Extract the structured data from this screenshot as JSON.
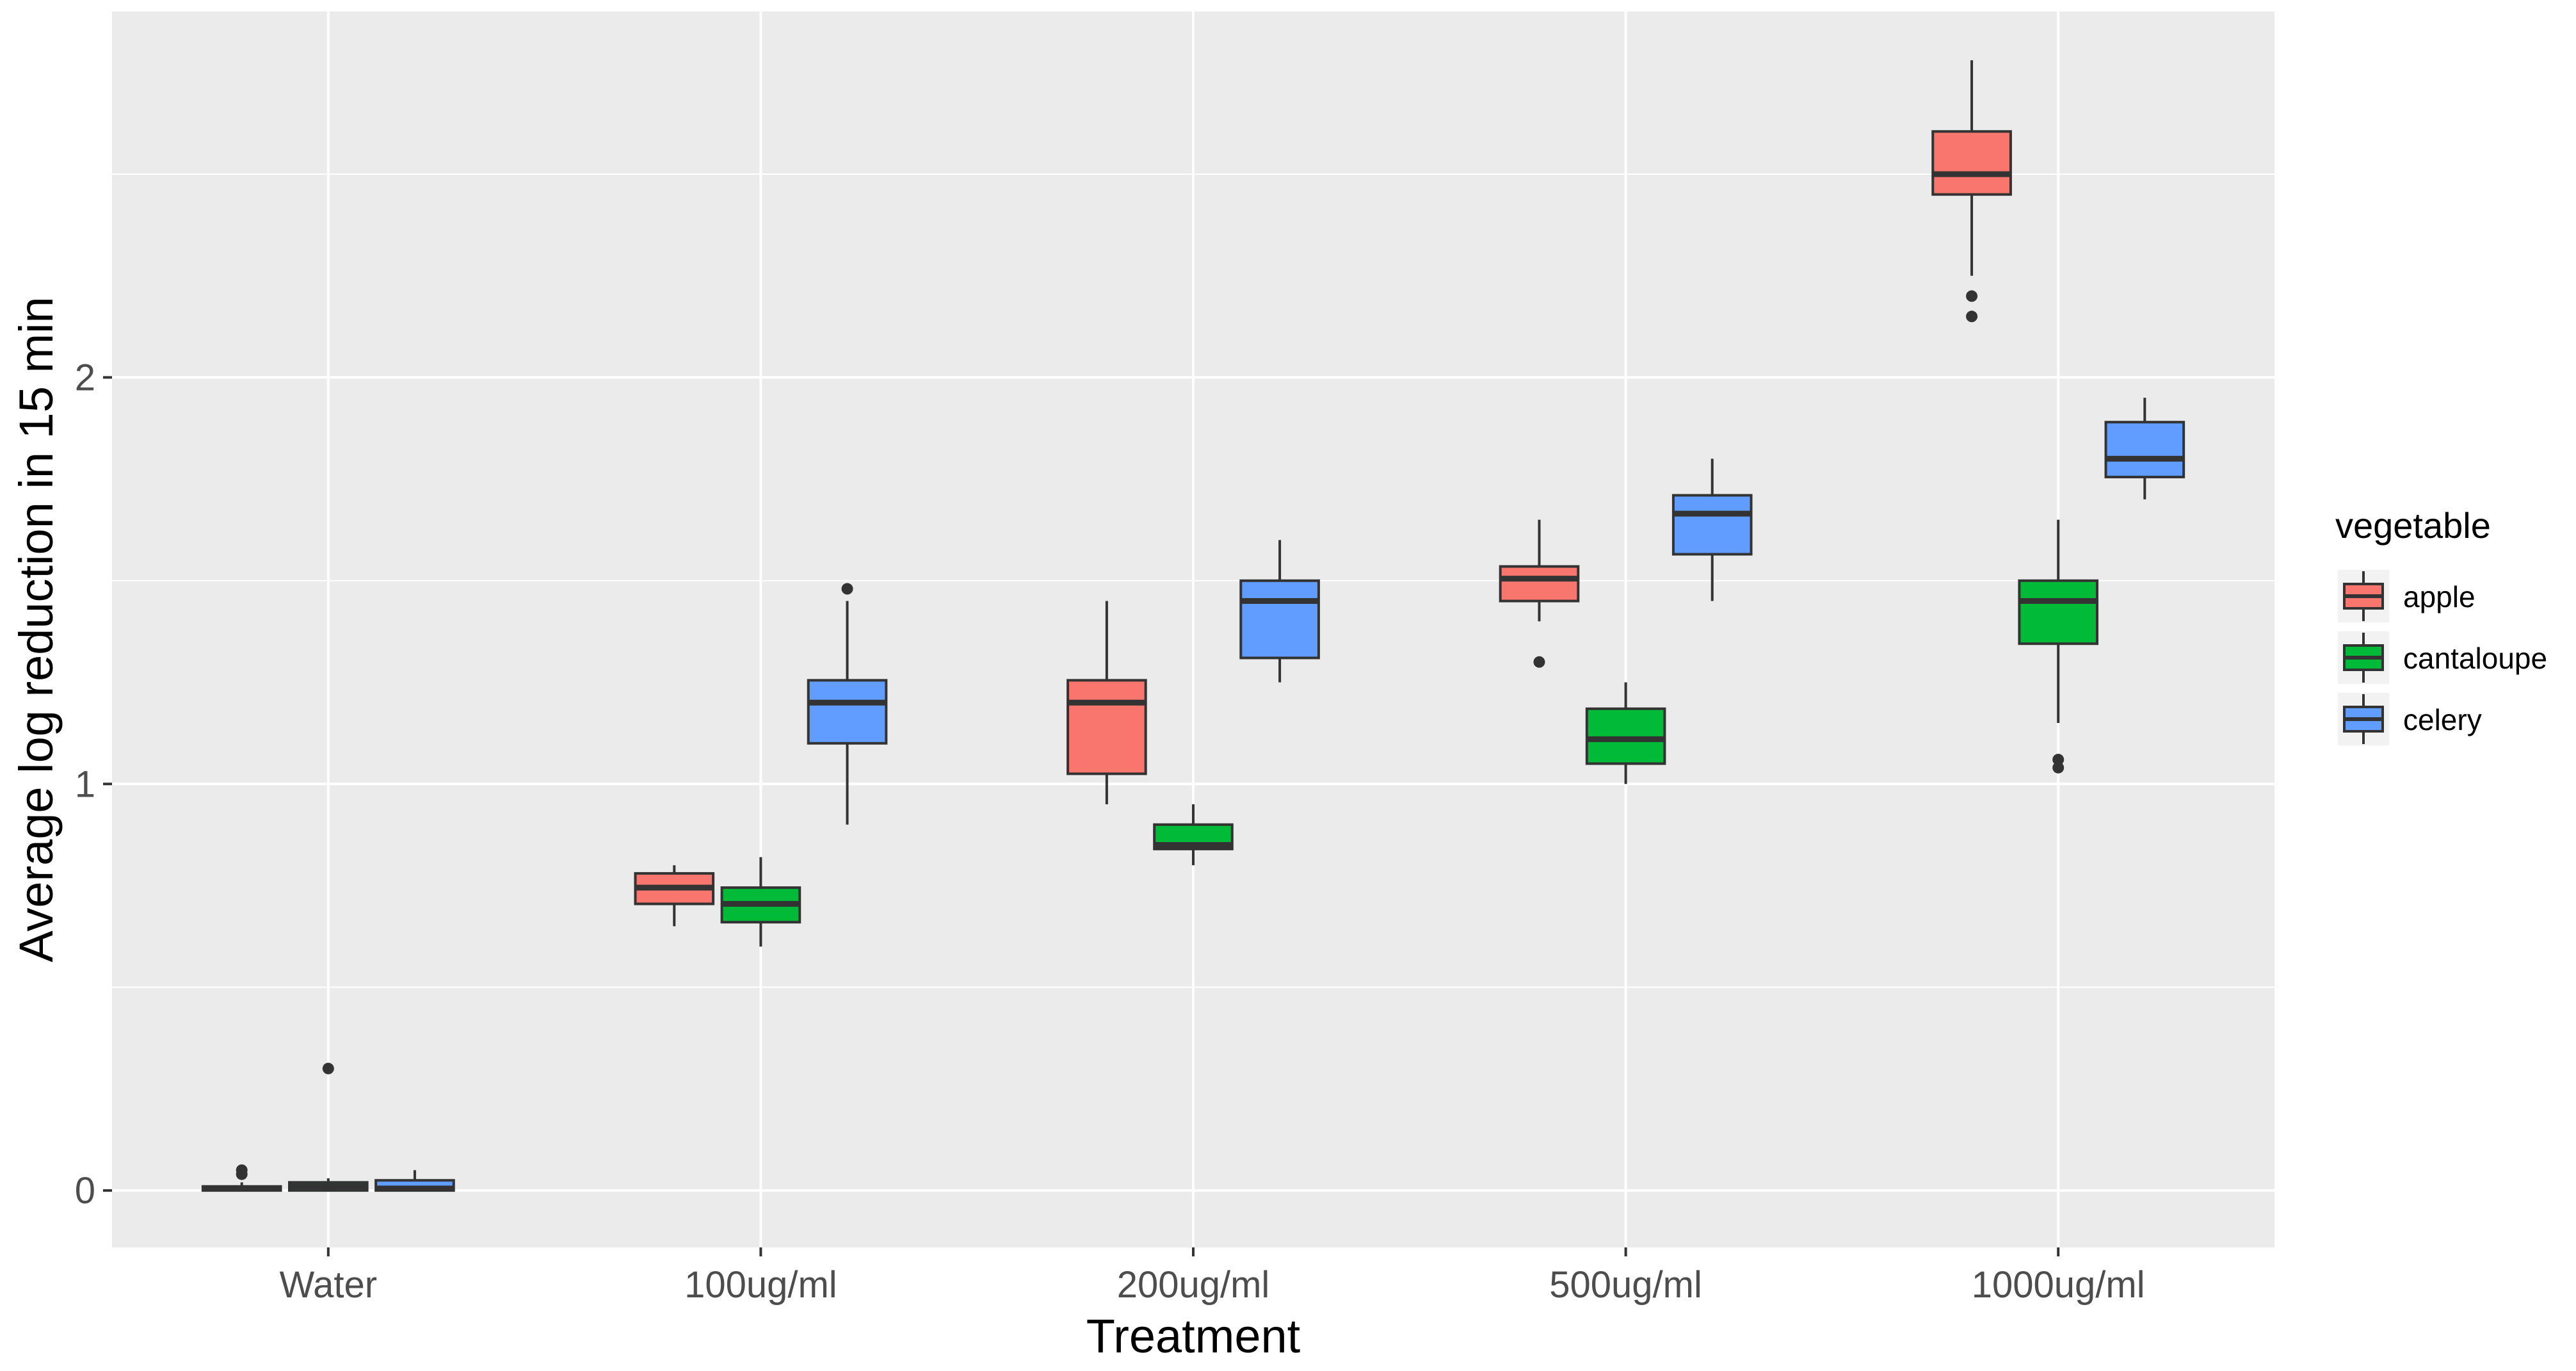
{
  "chart_data": {
    "type": "boxplot",
    "xlabel": "Treatment",
    "ylabel": "Average log reduction in 15 min",
    "categories": [
      "Water",
      "100ug/ml",
      "200ug/ml",
      "500ug/ml",
      "1000ug/ml"
    ],
    "y_ticks": [
      0,
      1,
      2
    ],
    "ylim": [
      -0.14,
      2.9
    ],
    "grid": true,
    "legend": {
      "title": "vegetable",
      "position": "right"
    },
    "series": [
      {
        "name": "apple",
        "color": "#F8766D",
        "boxes": [
          {
            "category": "Water",
            "whisker_low": 0.0,
            "q1": 0.0,
            "median": 0.005,
            "q3": 0.01,
            "whisker_high": 0.02,
            "outliers": [
              0.04,
              0.05
            ]
          },
          {
            "category": "100ug/ml",
            "whisker_low": 0.65,
            "q1": 0.705,
            "median": 0.745,
            "q3": 0.78,
            "whisker_high": 0.8,
            "outliers": []
          },
          {
            "category": "200ug/ml",
            "whisker_low": 0.95,
            "q1": 1.025,
            "median": 1.2,
            "q3": 1.255,
            "whisker_high": 1.45,
            "outliers": []
          },
          {
            "category": "500ug/ml",
            "whisker_low": 1.4,
            "q1": 1.45,
            "median": 1.505,
            "q3": 1.535,
            "whisker_high": 1.65,
            "outliers": [
              1.3
            ]
          },
          {
            "category": "1000ug/ml",
            "whisker_low": 2.25,
            "q1": 2.45,
            "median": 2.5,
            "q3": 2.605,
            "whisker_high": 2.78,
            "outliers": [
              2.2,
              2.15
            ]
          }
        ]
      },
      {
        "name": "cantaloupe",
        "color": "#00BA38",
        "boxes": [
          {
            "category": "Water",
            "whisker_low": 0.0,
            "q1": 0.0,
            "median": 0.01,
            "q3": 0.02,
            "whisker_high": 0.03,
            "outliers": [
              0.3
            ]
          },
          {
            "category": "100ug/ml",
            "whisker_low": 0.6,
            "q1": 0.66,
            "median": 0.705,
            "q3": 0.745,
            "whisker_high": 0.82,
            "outliers": []
          },
          {
            "category": "200ug/ml",
            "whisker_low": 0.8,
            "q1": 0.84,
            "median": 0.85,
            "q3": 0.9,
            "whisker_high": 0.95,
            "outliers": []
          },
          {
            "category": "500ug/ml",
            "whisker_low": 1.0,
            "q1": 1.05,
            "median": 1.11,
            "q3": 1.185,
            "whisker_high": 1.25,
            "outliers": []
          },
          {
            "category": "1000ug/ml",
            "whisker_low": 1.15,
            "q1": 1.345,
            "median": 1.45,
            "q3": 1.5,
            "whisker_high": 1.65,
            "outliers": [
              1.06,
              1.04
            ]
          }
        ]
      },
      {
        "name": "celery",
        "color": "#619CFF",
        "boxes": [
          {
            "category": "Water",
            "whisker_low": 0.0,
            "q1": 0.0,
            "median": 0.005,
            "q3": 0.025,
            "whisker_high": 0.05,
            "outliers": []
          },
          {
            "category": "100ug/ml",
            "whisker_low": 0.9,
            "q1": 1.1,
            "median": 1.2,
            "q3": 1.255,
            "whisker_high": 1.45,
            "outliers": [
              1.48
            ]
          },
          {
            "category": "200ug/ml",
            "whisker_low": 1.25,
            "q1": 1.31,
            "median": 1.45,
            "q3": 1.5,
            "whisker_high": 1.6,
            "outliers": []
          },
          {
            "category": "500ug/ml",
            "whisker_low": 1.45,
            "q1": 1.565,
            "median": 1.665,
            "q3": 1.71,
            "whisker_high": 1.8,
            "outliers": []
          },
          {
            "category": "1000ug/ml",
            "whisker_low": 1.7,
            "q1": 1.755,
            "median": 1.8,
            "q3": 1.89,
            "whisker_high": 1.95,
            "outliers": []
          }
        ]
      }
    ]
  }
}
